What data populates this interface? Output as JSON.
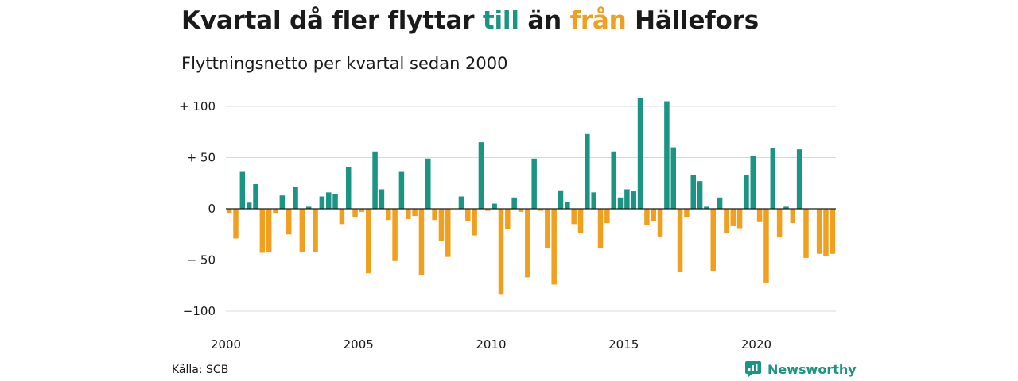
{
  "title": {
    "part1": "Kvartal då fler flyttar ",
    "in_word": "till",
    "part2": " än ",
    "out_word": "från",
    "part3": " Hällefors"
  },
  "subtitle": "Flyttningsnetto per kvartal sedan 2000",
  "source": "Källa: SCB",
  "brand": "Newsworthy",
  "colors": {
    "positive": "#1a9483",
    "negative": "#f0a01e",
    "grid": "#d9d9d9",
    "axis": "#1a1a1a"
  },
  "chart_data": {
    "type": "bar",
    "xlabel": "",
    "ylabel": "",
    "ylim": [
      -100,
      100
    ],
    "y_ticks": [
      100,
      50,
      0,
      -50,
      -100
    ],
    "y_tick_labels": [
      "+ 100",
      "+  50",
      "0",
      "− 50",
      "−100"
    ],
    "x_ticks": [
      2000,
      2005,
      2010,
      2015,
      2020
    ],
    "x_tick_labels": [
      "2000",
      "2005",
      "2010",
      "2015",
      "2020"
    ],
    "grid": true,
    "first_quarter": "2000Q1",
    "quarters_per_year": 4,
    "values": [
      -4,
      -29,
      36,
      6,
      24,
      -43,
      -42,
      -4,
      13,
      -25,
      21,
      -42,
      2,
      -42,
      12,
      16,
      14,
      -15,
      41,
      -8,
      -3,
      -63,
      56,
      19,
      -11,
      -51,
      36,
      -10,
      -7,
      -65,
      49,
      -11,
      -31,
      -47,
      0,
      12,
      -12,
      -26,
      65,
      -2,
      5,
      -84,
      -20,
      11,
      -3,
      -67,
      49,
      -2,
      -38,
      -74,
      18,
      7,
      -15,
      -24,
      73,
      16,
      -38,
      -14,
      56,
      11,
      19,
      17,
      108,
      -16,
      -12,
      -27,
      105,
      60,
      -62,
      -8,
      33,
      27,
      2,
      -61,
      11,
      -24,
      -17,
      -19,
      33,
      52,
      -13,
      -72,
      59,
      -28,
      2,
      -14,
      58,
      -48,
      0,
      -44,
      -46,
      -44
    ]
  }
}
